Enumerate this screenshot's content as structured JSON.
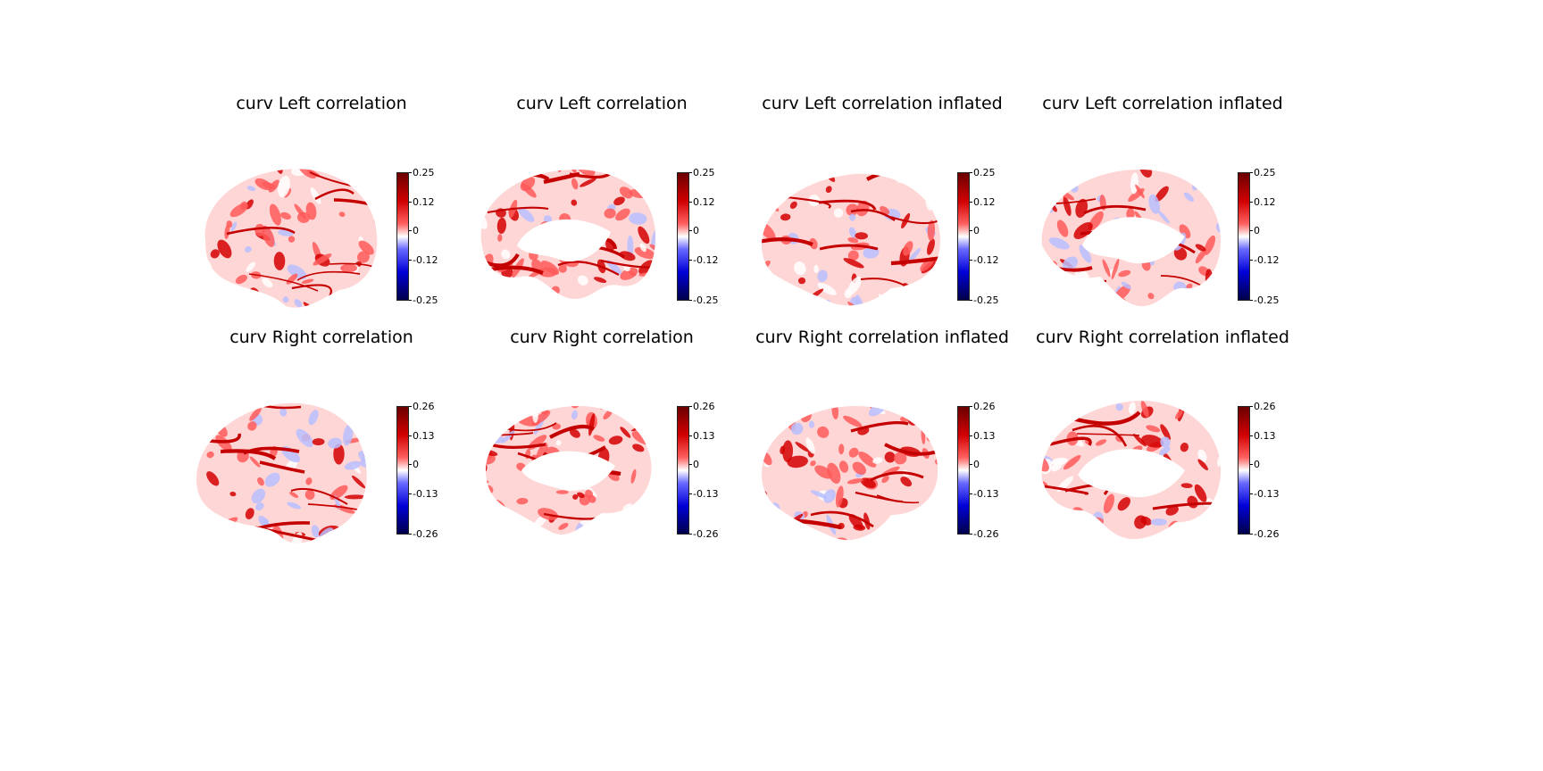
{
  "figure": {
    "panels": [
      {
        "title": "curv Left correlation",
        "view": "lateral-left",
        "colorbar": {
          "ticks": [
            "0.25",
            "0.12",
            "0",
            "-0.12",
            "-0.25"
          ]
        }
      },
      {
        "title": "curv Left correlation",
        "view": "medial-left",
        "colorbar": {
          "ticks": [
            "0.25",
            "0.12",
            "0",
            "-0.12",
            "-0.25"
          ]
        }
      },
      {
        "title": "curv Left correlation inflated",
        "view": "lateral-left-inflated",
        "colorbar": {
          "ticks": [
            "0.25",
            "0.12",
            "0",
            "-0.12",
            "-0.25"
          ]
        }
      },
      {
        "title": "curv Left correlation inflated",
        "view": "medial-left-inflated",
        "colorbar": {
          "ticks": [
            "0.25",
            "0.12",
            "0",
            "-0.12",
            "-0.25"
          ]
        }
      },
      {
        "title": "curv Right correlation",
        "view": "lateral-right",
        "colorbar": {
          "ticks": [
            "0.26",
            "0.13",
            "0",
            "-0.13",
            "-0.26"
          ]
        }
      },
      {
        "title": "curv Right correlation",
        "view": "medial-right",
        "colorbar": {
          "ticks": [
            "0.26",
            "0.13",
            "0",
            "-0.13",
            "-0.26"
          ]
        }
      },
      {
        "title": "curv Right correlation inflated",
        "view": "lateral-right-inflated",
        "colorbar": {
          "ticks": [
            "0.26",
            "0.13",
            "0",
            "-0.13",
            "-0.26"
          ]
        }
      },
      {
        "title": "curv Right correlation inflated",
        "view": "medial-right-inflated",
        "colorbar": {
          "ticks": [
            "0.26",
            "0.13",
            "0",
            "-0.13",
            "-0.26"
          ]
        }
      }
    ],
    "colormap": {
      "name": "seismic",
      "high": "#6b0000",
      "mid": "#ffffff",
      "low": "#00004a"
    }
  }
}
